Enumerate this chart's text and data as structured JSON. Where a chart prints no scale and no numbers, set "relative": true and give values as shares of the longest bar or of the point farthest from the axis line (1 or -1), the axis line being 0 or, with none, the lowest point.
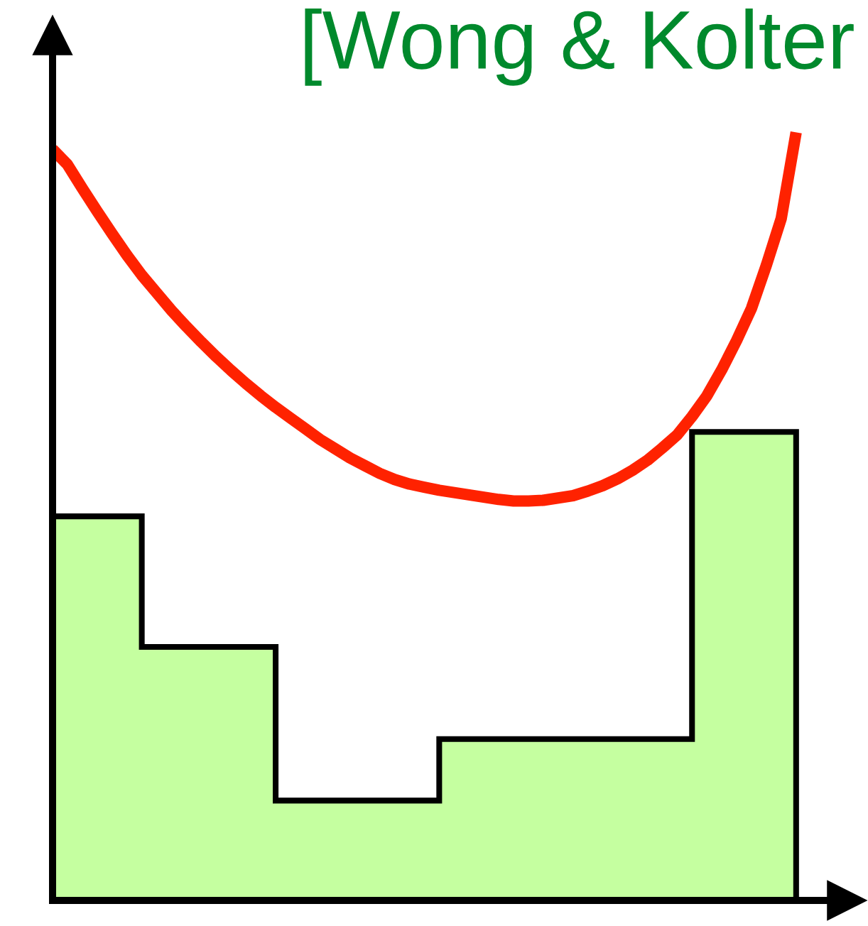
{
  "chart_data": {
    "type": "area",
    "title": "[Wong & Kolter",
    "relative": true,
    "categories": [
      null,
      null,
      null,
      null,
      null,
      null,
      null,
      null,
      null,
      null,
      null,
      null,
      null,
      null,
      null,
      null,
      null,
      null,
      null,
      null,
      null,
      null,
      null,
      null,
      null,
      null,
      null,
      null,
      null,
      null,
      null,
      null,
      null,
      null,
      null,
      null,
      null,
      null,
      null,
      null,
      null,
      null,
      null,
      null,
      null,
      null,
      null,
      null,
      null,
      null,
      null
    ],
    "series": [
      {
        "type": "area",
        "color": "#c5ffa0",
        "values": [
          0.5,
          0.5,
          0.5,
          0.5,
          0.5,
          0.5,
          0.33,
          0.33,
          0.33,
          0.33,
          0.33,
          0.33,
          0.33,
          0.33,
          0.33,
          0.13,
          0.13,
          0.13,
          0.13,
          0.13,
          0.13,
          0.13,
          0.13,
          0.13,
          0.13,
          0.13,
          0.21,
          0.21,
          0.21,
          0.21,
          0.21,
          0.21,
          0.21,
          0.21,
          0.21,
          0.21,
          0.21,
          0.21,
          0.21,
          0.21,
          0.21,
          0.21,
          0.21,
          0.61,
          0.61,
          0.61,
          0.61,
          0.61,
          0.61,
          0.61,
          0.61
        ]
      },
      {
        "type": "line",
        "color": "#ff2200",
        "values": [
          0.978,
          0.958,
          0.927,
          0.897,
          0.868,
          0.84,
          0.814,
          0.791,
          0.768,
          0.747,
          0.727,
          0.708,
          0.69,
          0.673,
          0.657,
          0.642,
          0.628,
          0.614,
          0.6,
          0.588,
          0.576,
          0.566,
          0.556,
          0.548,
          0.542,
          0.538,
          0.534,
          0.531,
          0.528,
          0.525,
          0.522,
          0.52,
          0.52,
          0.521,
          0.524,
          0.527,
          0.533,
          0.54,
          0.549,
          0.56,
          0.573,
          0.589,
          0.606,
          0.63,
          0.657,
          0.691,
          0.729,
          0.771,
          0.827,
          0.888,
          1
        ]
      }
    ]
  }
}
